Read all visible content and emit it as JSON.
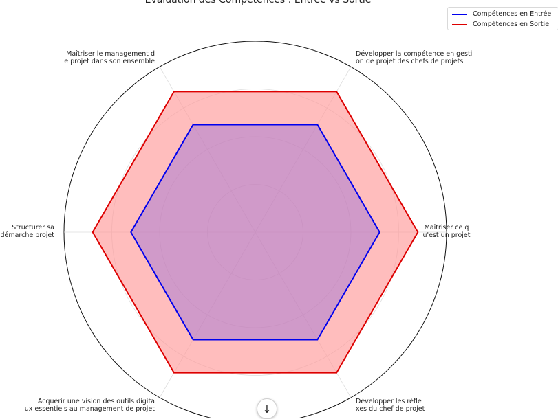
{
  "chart_data": {
    "type": "radar",
    "title": "Évaluation des Compétences : Entrée vs Sortie",
    "categories": [
      "Maîtriser ce qu'est un projet",
      "Développer la compétence en gestion de projet des chefs de projets",
      "Maîtriser le management de projet dans son ensemble",
      "Structurer sa démarche projet",
      "Acquérir une vision des outils digitaux essentiels au management de projet",
      "Développer les réflexes du chef de projet"
    ],
    "category_label_lines": [
      [
        "Maîtriser ce q",
        "u'est un projet"
      ],
      [
        "Développer la compétence en gesti",
        "on de projet des chefs de projets"
      ],
      [
        "Maîtriser le management d",
        "e projet dans son ensemble"
      ],
      [
        "Structurer sa",
        "démarche projet"
      ],
      [
        "Acquérir une vision des outils digita",
        "ux essentiels au management de projet"
      ],
      [
        "Développer les réfle",
        "xes du chef de projet"
      ]
    ],
    "series": [
      {
        "name": "Compétences en Entrée",
        "color": "#0000ee",
        "values": [
          2.6,
          2.6,
          2.6,
          2.6,
          2.6,
          2.6
        ]
      },
      {
        "name": "Compétences en Sortie",
        "color": "#dd0000",
        "fill": "#ff9999",
        "values": [
          3.4,
          3.4,
          3.4,
          3.4,
          3.4,
          3.4
        ]
      }
    ],
    "rlim": [
      0,
      4
    ],
    "grid": true,
    "legend_position": "top-right"
  },
  "legend": {
    "entries": [
      {
        "label": "Compétences en Entrée",
        "color": "#0000ee"
      },
      {
        "label": "Compétences en Sortie",
        "color": "#dd0000"
      }
    ]
  },
  "scroll_button": {
    "icon": "arrow-down-icon",
    "glyph": "↓"
  }
}
